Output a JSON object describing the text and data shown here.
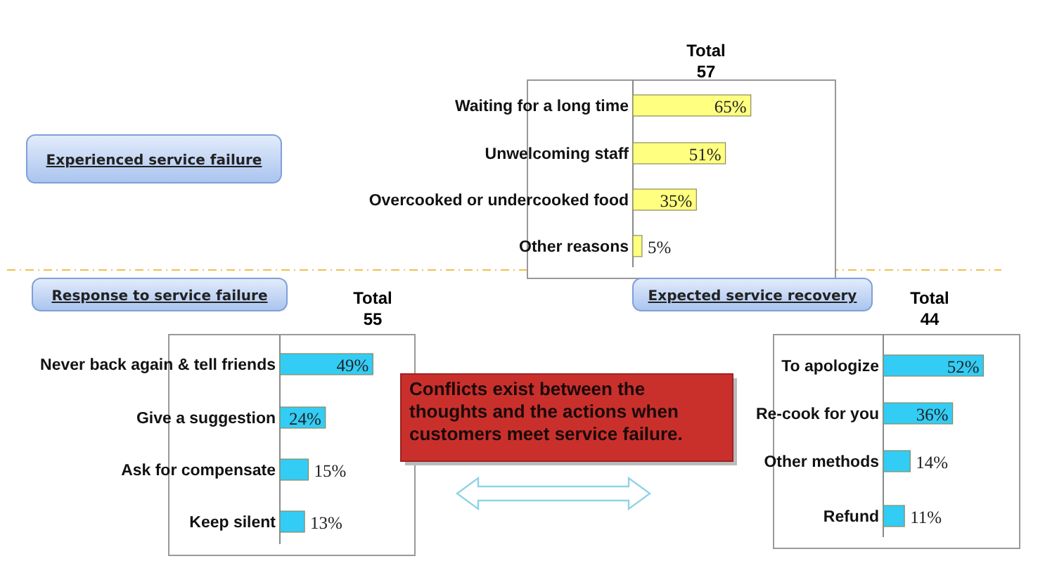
{
  "chart_data": [
    {
      "type": "bar",
      "orientation": "horizontal",
      "title": "Total",
      "subtitle": "57",
      "annotations": [
        "Experienced service failure"
      ],
      "categories": [
        "Waiting for a long time",
        "Unwelcoming staff",
        "Overcooked or undercooked food",
        "Other reasons"
      ],
      "values": [
        65,
        51,
        35,
        5
      ],
      "value_labels": [
        "65%",
        "51%",
        "35%",
        "5%"
      ],
      "color": "#ffff80"
    },
    {
      "type": "bar",
      "orientation": "horizontal",
      "title": "Total",
      "subtitle": "55",
      "annotations": [
        "Response to service failure"
      ],
      "categories": [
        "Never back again & tell friends",
        "Give a suggestion",
        "Ask for compensate",
        "Keep silent"
      ],
      "values": [
        49,
        24,
        15,
        13
      ],
      "value_labels": [
        "49%",
        "24%",
        "15%",
        "13%"
      ],
      "color": "#33ccf5"
    },
    {
      "type": "bar",
      "orientation": "horizontal",
      "title": "Total",
      "subtitle": "44",
      "annotations": [
        "Expected service recovery"
      ],
      "categories": [
        "To apologize",
        "Re-cook for you",
        "Other methods",
        "Refund"
      ],
      "values": [
        52,
        36,
        14,
        11
      ],
      "value_labels": [
        "52%",
        "36%",
        "14%",
        "11%"
      ],
      "color": "#33ccf5"
    },
    {
      "type": "other",
      "annotations": [
        "Conflicts exist between the thoughts and the actions when customers meet service failure."
      ]
    }
  ]
}
